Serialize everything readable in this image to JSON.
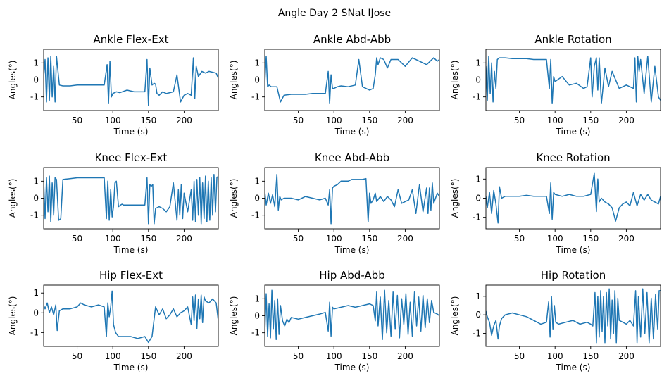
{
  "figure": {
    "title": "Angle Day 2 SNat IJose"
  },
  "chart_data": [
    {
      "type": "line",
      "title": "Ankle Flex-Ext",
      "xlabel": "Time (s)",
      "ylabel": "Angles(°)",
      "xlim": [
        3,
        248
      ],
      "ylim": [
        -1.8,
        1.8
      ],
      "xticks": [
        50,
        100,
        150,
        200
      ],
      "yticks": [
        1,
        0,
        -1
      ],
      "color": "#1f77b4",
      "x": [
        3,
        5,
        7,
        9,
        11,
        13,
        15,
        17,
        19,
        21,
        25,
        30,
        40,
        50,
        60,
        70,
        80,
        88,
        92,
        94,
        96,
        98,
        100,
        105,
        110,
        120,
        130,
        140,
        145,
        148,
        150,
        152,
        155,
        158,
        160,
        162,
        165,
        170,
        175,
        180,
        185,
        190,
        195,
        200,
        205,
        210,
        213,
        215,
        217,
        220,
        225,
        230,
        235,
        240,
        245,
        248
      ],
      "values": [
        0.2,
        1.2,
        -1.3,
        1.3,
        -1.2,
        1.4,
        -1.0,
        0.8,
        -1.3,
        1.4,
        -0.3,
        -0.35,
        -0.35,
        -0.3,
        -0.3,
        -0.3,
        -0.3,
        -0.3,
        0.9,
        -1.4,
        1.1,
        -1.0,
        -0.8,
        -0.7,
        -0.75,
        -0.6,
        -0.7,
        -0.7,
        -0.7,
        1.2,
        -1.5,
        0.7,
        -0.3,
        -0.2,
        -0.25,
        -0.8,
        -0.9,
        -0.7,
        -0.8,
        -0.75,
        -0.7,
        0.3,
        -1.3,
        -0.9,
        -0.8,
        -0.9,
        1.3,
        -1.1,
        0.8,
        0.2,
        0.5,
        0.4,
        0.5,
        0.45,
        0.4,
        0.1
      ]
    },
    {
      "type": "line",
      "title": "Ankle Abd-Abb",
      "xlabel": "Time (s)",
      "ylabel": "Angles(°)",
      "xlim": [
        3,
        248
      ],
      "ylim": [
        -1.8,
        1.8
      ],
      "xticks": [
        50,
        100,
        150,
        200
      ],
      "yticks": [
        1,
        0,
        -1
      ],
      "color": "#1f77b4",
      "x": [
        3,
        5,
        7,
        9,
        12,
        15,
        20,
        25,
        30,
        40,
        50,
        60,
        70,
        80,
        88,
        92,
        94,
        96,
        98,
        100,
        105,
        110,
        120,
        130,
        135,
        140,
        145,
        150,
        155,
        158,
        160,
        162,
        165,
        170,
        175,
        180,
        190,
        200,
        210,
        220,
        230,
        240,
        245,
        248
      ],
      "values": [
        -0.2,
        1.4,
        -0.4,
        -0.3,
        -0.4,
        -0.4,
        -0.4,
        -1.3,
        -0.9,
        -0.85,
        -0.85,
        -0.85,
        -0.8,
        -0.8,
        -0.8,
        0.5,
        -1.4,
        0.3,
        -0.5,
        -0.5,
        -0.4,
        -0.35,
        -0.4,
        -0.3,
        1.2,
        -0.4,
        -0.5,
        -0.6,
        -0.5,
        0.3,
        1.3,
        0.9,
        1.3,
        1.2,
        0.7,
        1.2,
        1.2,
        0.8,
        1.3,
        1.1,
        0.9,
        1.3,
        1.1,
        1.2
      ]
    },
    {
      "type": "line",
      "title": "Ankle Rotation",
      "xlabel": "Time (s)",
      "ylabel": "Angles(°)",
      "xlim": [
        3,
        248
      ],
      "ylim": [
        -1.8,
        1.8
      ],
      "xticks": [
        50,
        100,
        150,
        200
      ],
      "yticks": [
        1,
        0,
        -1
      ],
      "color": "#1f77b4",
      "x": [
        3,
        5,
        7,
        9,
        11,
        13,
        15,
        17,
        19,
        22,
        25,
        30,
        40,
        50,
        60,
        70,
        80,
        88,
        92,
        94,
        96,
        98,
        100,
        110,
        120,
        130,
        140,
        145,
        150,
        152,
        155,
        158,
        160,
        162,
        165,
        170,
        175,
        180,
        190,
        200,
        210,
        212,
        214,
        216,
        218,
        220,
        225,
        230,
        235,
        240,
        245,
        248
      ],
      "values": [
        0.8,
        -1.2,
        1.4,
        -0.8,
        1.0,
        -1.3,
        0.5,
        -0.5,
        1.2,
        1.3,
        1.3,
        1.3,
        1.25,
        1.25,
        1.25,
        1.2,
        1.2,
        1.2,
        -0.5,
        1.2,
        -1.4,
        0.2,
        -0.1,
        0.2,
        -0.3,
        -0.2,
        -0.5,
        -0.4,
        1.3,
        -1.0,
        0.8,
        1.3,
        -0.6,
        1.3,
        -1.4,
        0.7,
        -0.4,
        0.5,
        -0.5,
        -0.3,
        -0.5,
        1.3,
        -1.3,
        1.4,
        0.5,
        1.2,
        -0.8,
        1.4,
        -1.3,
        0.8,
        -1.0,
        -1.2
      ]
    },
    {
      "type": "line",
      "title": "Knee Flex-Ext",
      "xlabel": "Time (s)",
      "ylabel": "Angles(°)",
      "xlim": [
        3,
        248
      ],
      "ylim": [
        -1.8,
        1.8
      ],
      "xticks": [
        50,
        100,
        150,
        200
      ],
      "yticks": [
        1,
        0,
        -1
      ],
      "color": "#1f77b4",
      "x": [
        3,
        5,
        7,
        9,
        11,
        13,
        15,
        17,
        19,
        21,
        24,
        27,
        30,
        40,
        50,
        60,
        70,
        80,
        88,
        91,
        93,
        95,
        97,
        99,
        101,
        103,
        105,
        108,
        111,
        113,
        115,
        120,
        130,
        140,
        145,
        148,
        150,
        152,
        154,
        156,
        158,
        160,
        165,
        170,
        175,
        180,
        185,
        190,
        192,
        194,
        196,
        198,
        200,
        205,
        210,
        212,
        214,
        216,
        218,
        220,
        222,
        224,
        226,
        228,
        230,
        232,
        234,
        236,
        238,
        240,
        242,
        244,
        246,
        248
      ],
      "values": [
        1.0,
        -1.2,
        1.2,
        -0.8,
        1.3,
        -1.4,
        0.9,
        -1.0,
        1.2,
        1.1,
        -1.3,
        -1.2,
        1.1,
        1.15,
        1.2,
        1.2,
        1.2,
        1.2,
        1.2,
        -1.2,
        1.0,
        -1.3,
        0.5,
        -1.1,
        -0.5,
        0.9,
        1.0,
        -0.5,
        -0.4,
        -0.35,
        -0.4,
        -0.4,
        -0.4,
        -0.4,
        -0.4,
        1.2,
        -1.5,
        0.8,
        0.7,
        0.8,
        -1.5,
        -0.6,
        -0.5,
        -0.6,
        -0.8,
        -0.5,
        0.9,
        -1.3,
        0.5,
        -1.0,
        0.8,
        -1.2,
        0.3,
        -0.8,
        0.5,
        -1.3,
        1.0,
        -1.4,
        1.1,
        -1.0,
        1.2,
        -1.5,
        0.9,
        -1.2,
        1.3,
        -1.4,
        1.0,
        -1.3,
        1.2,
        -1.0,
        1.4,
        -0.8,
        1.2,
        1.3
      ]
    },
    {
      "type": "line",
      "title": "Knee Abd-Abb",
      "xlabel": "Time (s)",
      "ylabel": "Angles(°)",
      "xlim": [
        3,
        248
      ],
      "ylim": [
        -1.8,
        1.8
      ],
      "xticks": [
        50,
        100,
        150,
        200
      ],
      "yticks": [
        1,
        0,
        -1
      ],
      "color": "#1f77b4",
      "x": [
        3,
        5,
        8,
        11,
        14,
        17,
        20,
        22,
        24,
        26,
        30,
        40,
        50,
        60,
        70,
        80,
        88,
        92,
        94,
        96,
        98,
        100,
        105,
        110,
        120,
        125,
        130,
        140,
        145,
        148,
        150,
        152,
        155,
        158,
        160,
        165,
        170,
        175,
        180,
        185,
        190,
        195,
        200,
        205,
        210,
        215,
        220,
        225,
        230,
        232,
        234,
        236,
        238,
        240,
        245,
        248
      ],
      "values": [
        0.4,
        -0.4,
        0.3,
        -0.3,
        0.2,
        -0.5,
        1.4,
        -0.7,
        0.1,
        -0.1,
        0.0,
        0.0,
        -0.1,
        0.1,
        0.0,
        -0.1,
        0.0,
        -0.4,
        0.5,
        -1.5,
        0.6,
        0.7,
        0.8,
        1.0,
        1.0,
        1.1,
        1.1,
        1.1,
        1.15,
        -1.4,
        0.3,
        -0.3,
        -0.1,
        0.3,
        -0.2,
        0.1,
        -0.2,
        0.1,
        -0.1,
        -0.5,
        0.5,
        -0.3,
        -0.2,
        -0.1,
        0.5,
        -0.9,
        0.8,
        -0.8,
        0.6,
        -0.9,
        0.6,
        -0.7,
        0.9,
        -0.3,
        0.3,
        0.1
      ]
    },
    {
      "type": "line",
      "title": "Knee Rotation",
      "xlabel": "Time (s)",
      "ylabel": "Angles(°)",
      "xlim": [
        3,
        248
      ],
      "ylim": [
        -1.6,
        1.6
      ],
      "xticks": [
        50,
        100,
        150,
        200
      ],
      "yticks": [
        1,
        0,
        -1
      ],
      "color": "#1f77b4",
      "x": [
        3,
        5,
        8,
        11,
        14,
        17,
        20,
        22,
        25,
        30,
        40,
        50,
        60,
        70,
        80,
        88,
        92,
        94,
        96,
        98,
        100,
        110,
        120,
        130,
        140,
        150,
        155,
        158,
        160,
        162,
        165,
        170,
        175,
        180,
        185,
        190,
        195,
        200,
        205,
        210,
        215,
        220,
        225,
        230,
        235,
        240,
        245,
        248
      ],
      "values": [
        0.1,
        -0.5,
        0.3,
        -0.8,
        0.4,
        -0.3,
        -1.3,
        0.6,
        0.0,
        0.1,
        0.1,
        0.1,
        0.15,
        0.1,
        0.1,
        0.1,
        -0.8,
        0.8,
        -1.1,
        0.3,
        0.2,
        0.1,
        0.2,
        0.1,
        0.1,
        0.2,
        1.3,
        -0.7,
        1.0,
        -0.2,
        0.0,
        -0.2,
        -0.3,
        -0.5,
        -1.2,
        -0.5,
        -0.3,
        -0.2,
        -0.4,
        0.3,
        -0.4,
        0.2,
        -0.1,
        0.2,
        -0.1,
        -0.2,
        -0.3,
        0.1
      ]
    },
    {
      "type": "line",
      "title": "Hip Flex-Ext",
      "xlabel": "Time (s)",
      "ylabel": "Angles(°)",
      "xlim": [
        3,
        248
      ],
      "ylim": [
        -1.7,
        1.4
      ],
      "xticks": [
        50,
        100,
        150,
        200
      ],
      "yticks": [
        1,
        0,
        -1
      ],
      "color": "#1f77b4",
      "x": [
        3,
        5,
        8,
        11,
        14,
        17,
        20,
        22,
        25,
        30,
        40,
        50,
        55,
        60,
        70,
        80,
        88,
        91,
        93,
        95,
        97,
        99,
        101,
        104,
        108,
        115,
        125,
        135,
        145,
        150,
        155,
        158,
        160,
        165,
        170,
        175,
        180,
        185,
        190,
        195,
        200,
        205,
        210,
        212,
        214,
        216,
        218,
        220,
        222,
        224,
        226,
        228,
        230,
        235,
        240,
        245,
        248
      ],
      "values": [
        0.4,
        0.2,
        0.5,
        0.0,
        0.3,
        -0.1,
        0.4,
        -0.9,
        0.1,
        0.2,
        0.2,
        0.3,
        0.5,
        0.4,
        0.3,
        0.4,
        0.3,
        -1.2,
        0.5,
        -0.2,
        0.3,
        1.1,
        -0.6,
        -1.0,
        -1.2,
        -1.2,
        -1.2,
        -1.3,
        -1.2,
        -1.5,
        -1.2,
        -0.3,
        0.3,
        -0.1,
        0.2,
        -0.3,
        -0.1,
        0.2,
        -0.2,
        0.0,
        0.1,
        0.3,
        -0.6,
        0.8,
        -0.4,
        0.9,
        -0.8,
        0.7,
        -0.3,
        0.9,
        -0.5,
        0.8,
        0.6,
        0.5,
        0.7,
        0.5,
        -0.4
      ]
    },
    {
      "type": "line",
      "title": "Hip Abd-Abb",
      "xlabel": "Time (s)",
      "ylabel": "Angles(°)",
      "xlim": [
        3,
        248
      ],
      "ylim": [
        -1.8,
        1.8
      ],
      "xticks": [
        50,
        100,
        150,
        200
      ],
      "yticks": [
        1,
        0,
        -1
      ],
      "color": "#1f77b4",
      "x": [
        3,
        5,
        7,
        9,
        11,
        13,
        15,
        17,
        19,
        21,
        23,
        25,
        28,
        31,
        34,
        37,
        40,
        50,
        60,
        70,
        80,
        88,
        92,
        94,
        96,
        98,
        100,
        110,
        120,
        130,
        140,
        150,
        155,
        158,
        160,
        162,
        165,
        168,
        171,
        174,
        177,
        180,
        183,
        186,
        189,
        192,
        195,
        198,
        201,
        204,
        207,
        210,
        213,
        216,
        219,
        222,
        225,
        228,
        231,
        234,
        237,
        240,
        245,
        248
      ],
      "values": [
        -1.0,
        1.3,
        -1.2,
        0.7,
        -1.3,
        1.5,
        -0.8,
        0.9,
        -1.4,
        1.0,
        -1.1,
        0.6,
        -0.3,
        -0.6,
        -0.2,
        -0.4,
        -0.1,
        -0.2,
        -0.1,
        0.0,
        0.1,
        0.2,
        -0.9,
        0.8,
        -1.2,
        0.5,
        0.4,
        0.5,
        0.6,
        0.5,
        0.6,
        0.7,
        0.6,
        -0.3,
        1.4,
        -0.6,
        1.1,
        -1.4,
        1.5,
        -1.0,
        0.9,
        -1.2,
        1.4,
        -0.8,
        1.2,
        -1.3,
        1.0,
        -0.5,
        1.3,
        -1.1,
        0.8,
        -1.2,
        1.4,
        -0.6,
        1.1,
        -0.9,
        1.2,
        -0.7,
        1.0,
        -0.4,
        0.9,
        0.2,
        0.1,
        0.0
      ]
    },
    {
      "type": "line",
      "title": "Hip Rotation",
      "xlabel": "Time (s)",
      "ylabel": "Angles(°)",
      "xlim": [
        3,
        248
      ],
      "ylim": [
        -1.7,
        1.6
      ],
      "xticks": [
        50,
        100,
        150,
        200
      ],
      "yticks": [
        1,
        0,
        -1
      ],
      "color": "#1f77b4",
      "x": [
        3,
        5,
        8,
        11,
        14,
        17,
        20,
        22,
        25,
        30,
        40,
        50,
        60,
        70,
        80,
        88,
        91,
        93,
        95,
        97,
        99,
        101,
        105,
        115,
        125,
        135,
        145,
        150,
        153,
        156,
        158,
        160,
        162,
        164,
        166,
        168,
        170,
        172,
        174,
        176,
        178,
        180,
        182,
        184,
        186,
        188,
        190,
        195,
        200,
        205,
        210,
        213,
        215,
        217,
        220,
        223,
        226,
        229,
        232,
        235,
        238,
        241,
        244,
        246,
        248
      ],
      "values": [
        0.2,
        -0.1,
        -0.4,
        -1.1,
        -0.6,
        -0.3,
        -1.3,
        -0.6,
        -0.2,
        0.0,
        0.1,
        0.0,
        -0.1,
        -0.3,
        -0.5,
        -0.4,
        0.7,
        -1.2,
        1.0,
        -0.8,
        0.5,
        -0.4,
        -0.5,
        -0.4,
        -0.3,
        -0.5,
        -0.4,
        -0.5,
        -0.6,
        1.2,
        -1.5,
        1.0,
        -1.2,
        1.3,
        -0.9,
        1.0,
        -1.5,
        1.2,
        -0.6,
        1.4,
        -1.3,
        0.8,
        -1.0,
        1.3,
        -1.5,
        0.9,
        -0.3,
        -0.4,
        -0.5,
        -0.3,
        -0.6,
        1.3,
        -1.5,
        1.0,
        -1.2,
        1.4,
        -1.0,
        1.2,
        -1.5,
        0.9,
        -1.3,
        1.1,
        -0.8,
        1.3,
        1.3
      ]
    }
  ]
}
